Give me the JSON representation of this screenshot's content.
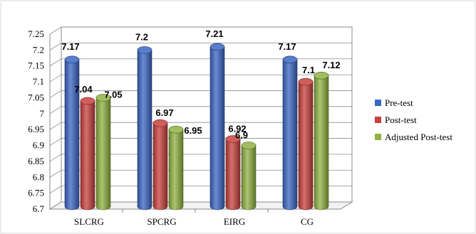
{
  "chart_data": {
    "type": "bar",
    "categories": [
      "SLCRG",
      "SPCRG",
      "EIRG",
      "CG"
    ],
    "series": [
      {
        "name": "Pre-test",
        "color": "#3a66c4",
        "values": [
          7.17,
          7.2,
          7.21,
          7.17
        ]
      },
      {
        "name": "Post-test",
        "color": "#c8403c",
        "values": [
          7.04,
          6.97,
          6.92,
          7.1
        ]
      },
      {
        "name": "Adjusted Post-test",
        "color": "#8fb240",
        "values": [
          7.05,
          6.95,
          6.9,
          7.12
        ]
      }
    ],
    "data_labels": [
      [
        "7.17",
        "7.04",
        "7.05"
      ],
      [
        "7.2",
        "6.97",
        "6.95"
      ],
      [
        "7.21",
        "6.92",
        "6.9"
      ],
      [
        "7.17",
        "7.1",
        "7.12"
      ]
    ],
    "yticks": [
      "6.7",
      "6.75",
      "6.8",
      "6.85",
      "6.9",
      "6.95",
      "7",
      "7.05",
      "7.1",
      "7.15",
      "7.2",
      "7.25"
    ],
    "ylim": [
      6.7,
      7.25
    ],
    "grid": true,
    "legend": "right"
  }
}
